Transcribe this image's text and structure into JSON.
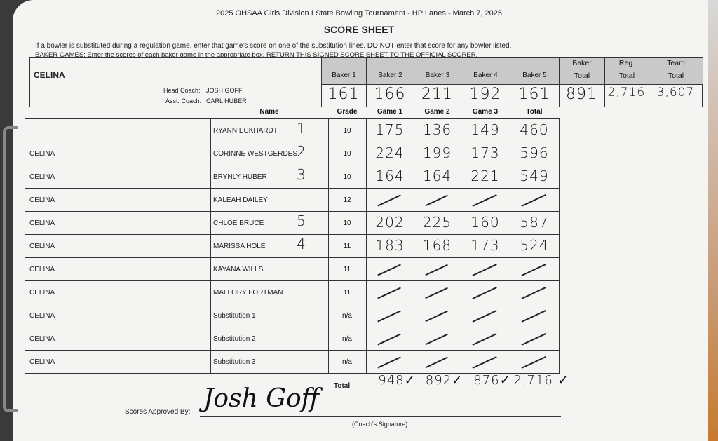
{
  "title": "2025 OHSAA Girls Division I State Bowling Tournament - HP Lanes - March 7, 2025",
  "subtitle": "SCORE SHEET",
  "instructions": [
    "If a bowler is substituted during a regulation game, enter that game's score on one of the substitution lines. DO NOT enter that score for any bowler listed.",
    "BAKER GAMES: Enter the scores of each baker game in the appropriate box.  RETURN THIS SIGNED SCORE SHEET TO THE OFFICIAL SCORER."
  ],
  "team": "CELINA",
  "head_coach_label": "Head Coach:",
  "head_coach": "JOSH GOFF",
  "asst_coach_label": "Asst. Coach:",
  "asst_coach": "CARL HUBER",
  "baker_headers": [
    "Baker 1",
    "Baker 2",
    "Baker 3",
    "Baker 4",
    "Baker 5",
    "Baker Total",
    "Reg. Total",
    "Team Total"
  ],
  "baker_scores": [
    "161",
    "166",
    "211",
    "192",
    "161",
    "891",
    "2,716",
    "3,607"
  ],
  "columns": {
    "name": "Name",
    "grade": "Grade",
    "g1": "Game 1",
    "g2": "Game 2",
    "g3": "Game 3",
    "total": "Total"
  },
  "rows": [
    {
      "team": "",
      "name": "RYANN ECKHARDT",
      "order": "1",
      "grade": "10",
      "g1": "175",
      "g2": "136",
      "g3": "149",
      "total": "460"
    },
    {
      "team": "CELINA",
      "name": "CORINNE WESTGERDES",
      "order": "2",
      "grade": "10",
      "g1": "224",
      "g2": "199",
      "g3": "173",
      "total": "596"
    },
    {
      "team": "CELINA",
      "name": "BRYNLY HUBER",
      "order": "3",
      "grade": "10",
      "g1": "164",
      "g2": "164",
      "g3": "221",
      "total": "549"
    },
    {
      "team": "CELINA",
      "name": "KALEAH DAILEY",
      "order": "",
      "grade": "12",
      "g1": "",
      "g2": "",
      "g3": "",
      "total": ""
    },
    {
      "team": "CELINA",
      "name": "CHLOE BRUCE",
      "order": "5",
      "grade": "10",
      "g1": "202",
      "g2": "225",
      "g3": "160",
      "total": "587"
    },
    {
      "team": "CELINA",
      "name": "MARISSA HOLE",
      "order": "4",
      "grade": "11",
      "g1": "183",
      "g2": "168",
      "g3": "173",
      "total": "524"
    },
    {
      "team": "CELINA",
      "name": "KAYANA WILLS",
      "order": "",
      "grade": "11",
      "g1": "",
      "g2": "",
      "g3": "",
      "total": ""
    },
    {
      "team": "CELINA",
      "name": "MALLORY FORTMAN",
      "order": "",
      "grade": "11",
      "g1": "",
      "g2": "",
      "g3": "",
      "total": ""
    },
    {
      "team": "CELINA",
      "name": "Substitution 1",
      "order": "",
      "grade": "n/a",
      "g1": "",
      "g2": "",
      "g3": "",
      "total": ""
    },
    {
      "team": "CELINA",
      "name": "Substitution 2",
      "order": "",
      "grade": "n/a",
      "g1": "",
      "g2": "",
      "g3": "",
      "total": ""
    },
    {
      "team": "CELINA",
      "name": "Substitution 3",
      "order": "",
      "grade": "n/a",
      "g1": "",
      "g2": "",
      "g3": "",
      "total": ""
    }
  ],
  "totals_label": "Total",
  "totals": [
    "948✓",
    "892✓",
    "876✓",
    "2,716 ✓"
  ],
  "approved_label": "Scores Approved By:",
  "signature": "Josh Goff",
  "signature_caption": "(Coach's Signature)"
}
